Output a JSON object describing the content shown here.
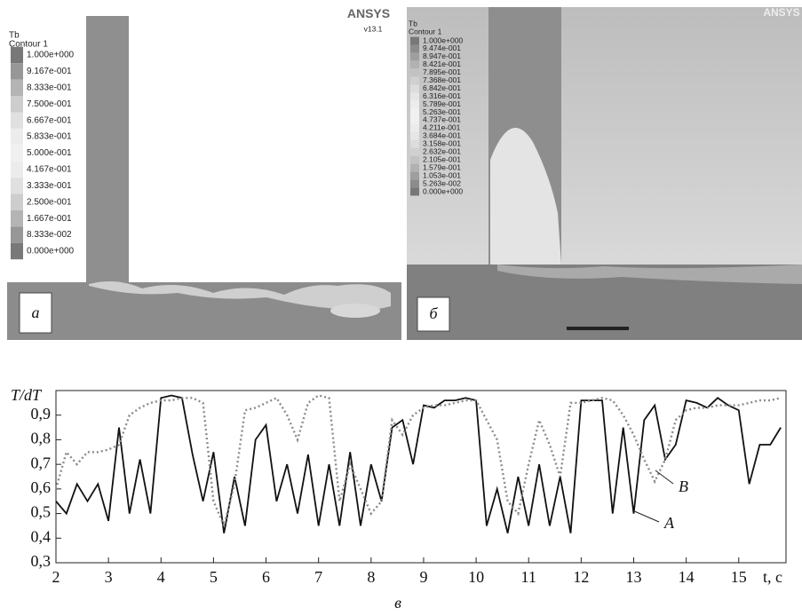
{
  "panels": [
    {
      "label": "а",
      "legend_title": "Tb",
      "legend_subtitle": "Contour 1",
      "logo": "ANSYS",
      "version": "v13.1",
      "levels": [
        "1.000e+000",
        "9.167e-001",
        "8.333e-001",
        "7.500e-001",
        "6.667e-001",
        "5.833e-001",
        "5.000e-001",
        "4.167e-001",
        "3.333e-001",
        "2.500e-001",
        "1.667e-001",
        "8.333e-002",
        "0.000e+000"
      ]
    },
    {
      "label": "б",
      "legend_title": "Tb",
      "legend_subtitle": "Contour 1",
      "logo": "ANSYS",
      "levels": [
        "1.000e+000",
        "9.474e-001",
        "8.947e-001",
        "8.421e-001",
        "7.895e-001",
        "7.368e-001",
        "6.842e-001",
        "6.316e-001",
        "5.789e-001",
        "5.263e-001",
        "4.737e-001",
        "4.211e-001",
        "3.684e-001",
        "3.158e-001",
        "2.632e-001",
        "2.105e-001",
        "1.579e-001",
        "1.053e-001",
        "5.263e-002",
        "0.000e+000"
      ]
    }
  ],
  "chart_data": {
    "type": "line",
    "caption": "в",
    "y_label": "T/dT",
    "x_label": "t, с",
    "x": [
      2.0,
      2.2,
      2.4,
      2.6,
      2.8,
      3.0,
      3.2,
      3.4,
      3.6,
      3.8,
      4.0,
      4.2,
      4.4,
      4.6,
      4.8,
      5.0,
      5.2,
      5.4,
      5.6,
      5.8,
      6.0,
      6.2,
      6.4,
      6.6,
      6.8,
      7.0,
      7.2,
      7.4,
      7.6,
      7.8,
      8.0,
      8.2,
      8.4,
      8.6,
      8.8,
      9.0,
      9.2,
      9.4,
      9.6,
      9.8,
      10.0,
      10.2,
      10.4,
      10.6,
      10.8,
      11.0,
      11.2,
      11.4,
      11.6,
      11.8,
      12.0,
      12.2,
      12.4,
      12.6,
      12.8,
      13.0,
      13.2,
      13.4,
      13.6,
      13.8,
      14.0,
      14.2,
      14.4,
      14.6,
      14.8,
      15.0,
      15.2,
      15.4,
      15.6,
      15.8
    ],
    "series": [
      {
        "name": "A",
        "color": "#111111",
        "dash": false,
        "values": [
          0.55,
          0.5,
          0.62,
          0.55,
          0.62,
          0.47,
          0.85,
          0.5,
          0.72,
          0.5,
          0.97,
          0.98,
          0.97,
          0.74,
          0.55,
          0.75,
          0.42,
          0.65,
          0.45,
          0.8,
          0.86,
          0.55,
          0.7,
          0.5,
          0.74,
          0.45,
          0.7,
          0.45,
          0.75,
          0.45,
          0.7,
          0.55,
          0.85,
          0.88,
          0.7,
          0.94,
          0.93,
          0.96,
          0.96,
          0.97,
          0.96,
          0.45,
          0.6,
          0.42,
          0.65,
          0.45,
          0.7,
          0.45,
          0.65,
          0.42,
          0.96,
          0.96,
          0.96,
          0.5,
          0.85,
          0.5,
          0.88,
          0.94,
          0.72,
          0.78,
          0.96,
          0.95,
          0.93,
          0.97,
          0.94,
          0.92,
          0.62,
          0.78,
          0.78,
          0.85
        ]
      },
      {
        "name": "B",
        "color": "#8a8a8a",
        "dash": true,
        "values": [
          0.6,
          0.75,
          0.7,
          0.75,
          0.75,
          0.76,
          0.78,
          0.9,
          0.93,
          0.95,
          0.96,
          0.96,
          0.97,
          0.97,
          0.95,
          0.55,
          0.45,
          0.62,
          0.92,
          0.93,
          0.95,
          0.97,
          0.9,
          0.8,
          0.95,
          0.98,
          0.97,
          0.55,
          0.7,
          0.6,
          0.5,
          0.55,
          0.88,
          0.82,
          0.9,
          0.93,
          0.94,
          0.94,
          0.95,
          0.96,
          0.96,
          0.88,
          0.8,
          0.55,
          0.5,
          0.7,
          0.88,
          0.78,
          0.65,
          0.95,
          0.95,
          0.96,
          0.97,
          0.96,
          0.9,
          0.82,
          0.72,
          0.63,
          0.72,
          0.88,
          0.92,
          0.93,
          0.93,
          0.94,
          0.94,
          0.94,
          0.95,
          0.96,
          0.96,
          0.97
        ]
      }
    ],
    "xlim": [
      2,
      15.9
    ],
    "ylim": [
      0.3,
      1.0
    ],
    "xticks": [
      2,
      3,
      4,
      5,
      6,
      7,
      8,
      9,
      10,
      11,
      12,
      13,
      14,
      15
    ],
    "yticks": [
      {
        "value": 0.3,
        "label": "0,3"
      },
      {
        "value": 0.4,
        "label": "0,4"
      },
      {
        "value": 0.5,
        "label": "0,5"
      },
      {
        "value": 0.6,
        "label": "0,6"
      },
      {
        "value": 0.7,
        "label": "0,7"
      },
      {
        "value": 0.8,
        "label": "0,8"
      },
      {
        "value": 0.9,
        "label": "0,9"
      }
    ]
  }
}
